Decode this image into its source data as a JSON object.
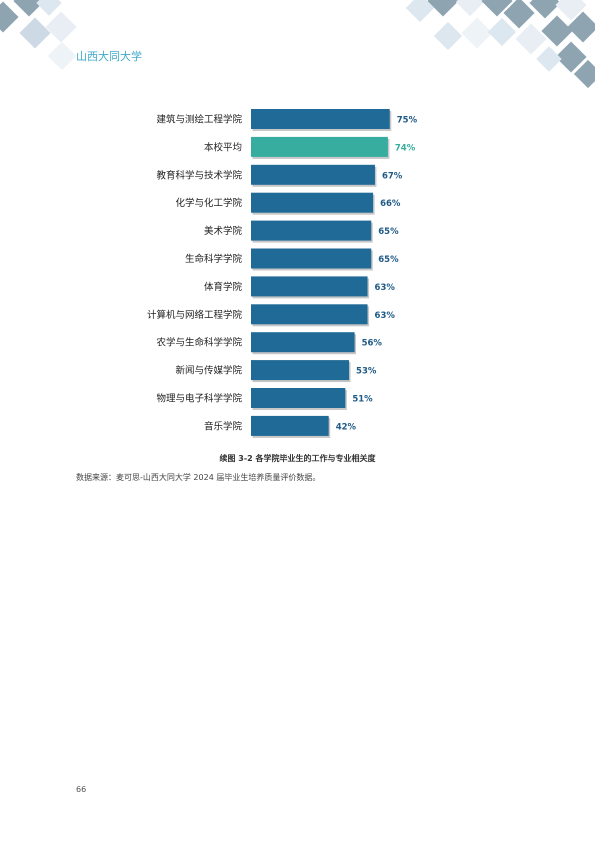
{
  "header": {
    "university": "山西大同大学"
  },
  "colors": {
    "bar_default": "#1f6a96",
    "bar_highlight": "#36ad9e",
    "label_default": "#1f5a86",
    "label_highlight": "#36ad9e",
    "header_text": "#3ea9c8",
    "decor_dark": "#8ea4b1",
    "decor_light": "#dde7f0"
  },
  "chart_data": {
    "type": "bar",
    "orientation": "horizontal",
    "categories": [
      "建筑与测绘工程学院",
      "本校平均",
      "教育科学与技术学院",
      "化学与化工学院",
      "美术学院",
      "生命科学学院",
      "体育学院",
      "计算机与网络工程学院",
      "农学与生命科学学院",
      "新闻与传媒学院",
      "物理与电子科学学院",
      "音乐学院"
    ],
    "values": [
      75,
      74,
      67,
      66,
      65,
      65,
      63,
      63,
      56,
      53,
      51,
      42
    ],
    "value_labels": [
      "75%",
      "74%",
      "67%",
      "66%",
      "65%",
      "65%",
      "63%",
      "63%",
      "56%",
      "53%",
      "51%",
      "42%"
    ],
    "highlight_index": 1,
    "xlim": [
      0,
      100
    ],
    "grid": false,
    "legend": "none",
    "title": "续图 3-2  各学院毕业生的工作与专业相关度"
  },
  "source_note": "数据来源：麦可思-山西大同大学 2024 届毕业生培养质量评价数据。",
  "page_number": "66"
}
